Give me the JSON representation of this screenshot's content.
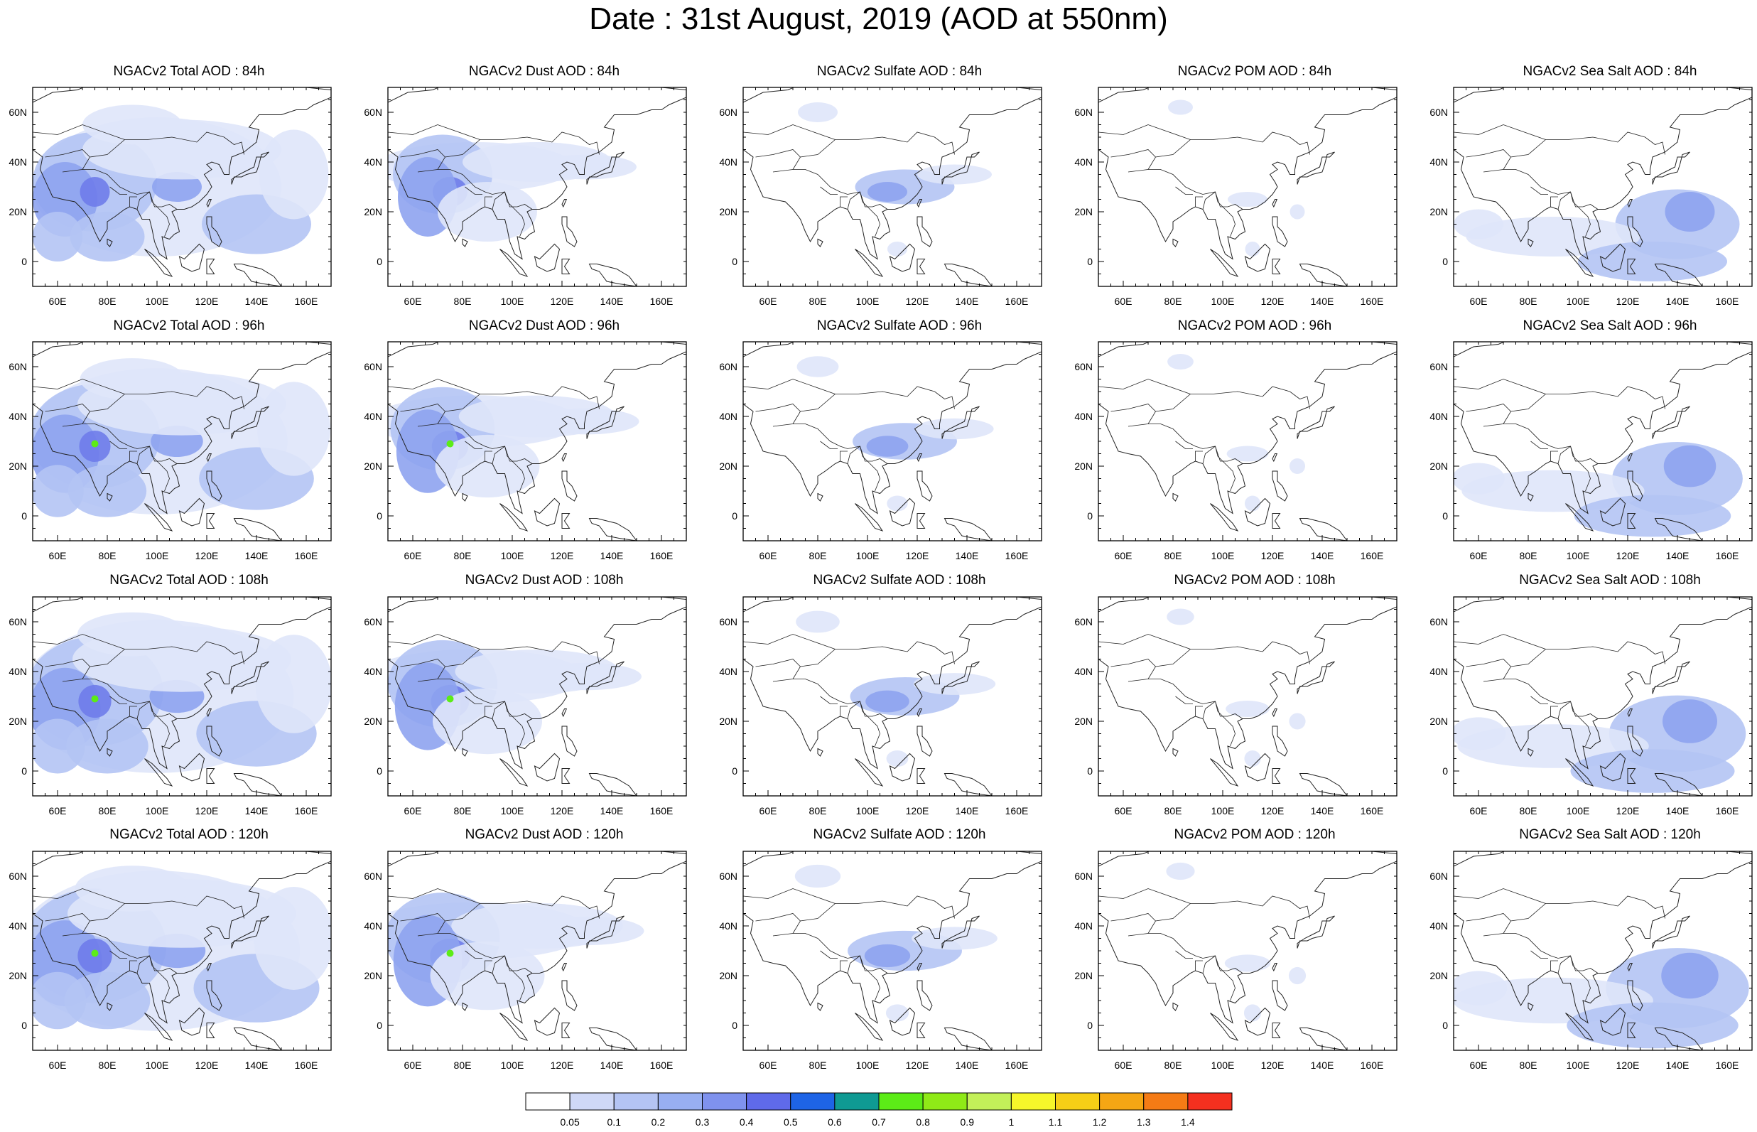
{
  "title": "Date : 31st August, 2019 (AOD at 550nm)",
  "panels": [
    [
      "NGACv2 Total AOD : 84h",
      "NGACv2 Dust AOD : 84h",
      "NGACv2 Sulfate AOD : 84h",
      "NGACv2 POM AOD : 84h",
      "NGACv2 Sea Salt AOD : 84h"
    ],
    [
      "NGACv2 Total AOD : 96h",
      "NGACv2 Dust AOD : 96h",
      "NGACv2 Sulfate AOD : 96h",
      "NGACv2 POM AOD : 96h",
      "NGACv2 Sea Salt AOD : 96h"
    ],
    [
      "NGACv2 Total AOD : 108h",
      "NGACv2 Dust AOD : 108h",
      "NGACv2 Sulfate AOD : 108h",
      "NGACv2 POM AOD : 108h",
      "NGACv2 Sea Salt AOD : 108h"
    ],
    [
      "NGACv2 Total AOD : 120h",
      "NGACv2 Dust AOD : 120h",
      "NGACv2 Sulfate AOD : 120h",
      "NGACv2 POM AOD : 120h",
      "NGACv2 Sea Salt  AOD : 120h"
    ]
  ],
  "map": {
    "lon_range": [
      50,
      170
    ],
    "lat_range": [
      -10,
      70
    ],
    "lon_ticks": [
      60,
      80,
      100,
      120,
      140,
      160
    ],
    "lon_tick_labels": [
      "60E",
      "80E",
      "100E",
      "120E",
      "140E",
      "160E"
    ],
    "lat_ticks": [
      0,
      20,
      40,
      60
    ],
    "lat_tick_labels": [
      "0",
      "20N",
      "40N",
      "60N"
    ]
  },
  "colorbar": {
    "colors": [
      "#ffffff",
      "#cfd8f7",
      "#b4c4f4",
      "#98aff2",
      "#7f92ee",
      "#5f6ae9",
      "#1e64e6",
      "#0f9a93",
      "#5cec17",
      "#8fea17",
      "#c3f059",
      "#f6f72a",
      "#f6cf16",
      "#f5a614",
      "#f57b15",
      "#f4301f"
    ],
    "labels": [
      "0.05",
      "0.1",
      "0.2",
      "0.3",
      "0.4",
      "0.5",
      "0.6",
      "0.7",
      "0.8",
      "0.9",
      "1",
      "1.1",
      "1.2",
      "1.3",
      "1.4"
    ]
  },
  "field_colors": {
    "light": "#dfe6fa",
    "mid": "#b4c4f4",
    "dark": "#8ea3f0",
    "deep": "#6f7cea",
    "hot": "#5cec17"
  }
}
